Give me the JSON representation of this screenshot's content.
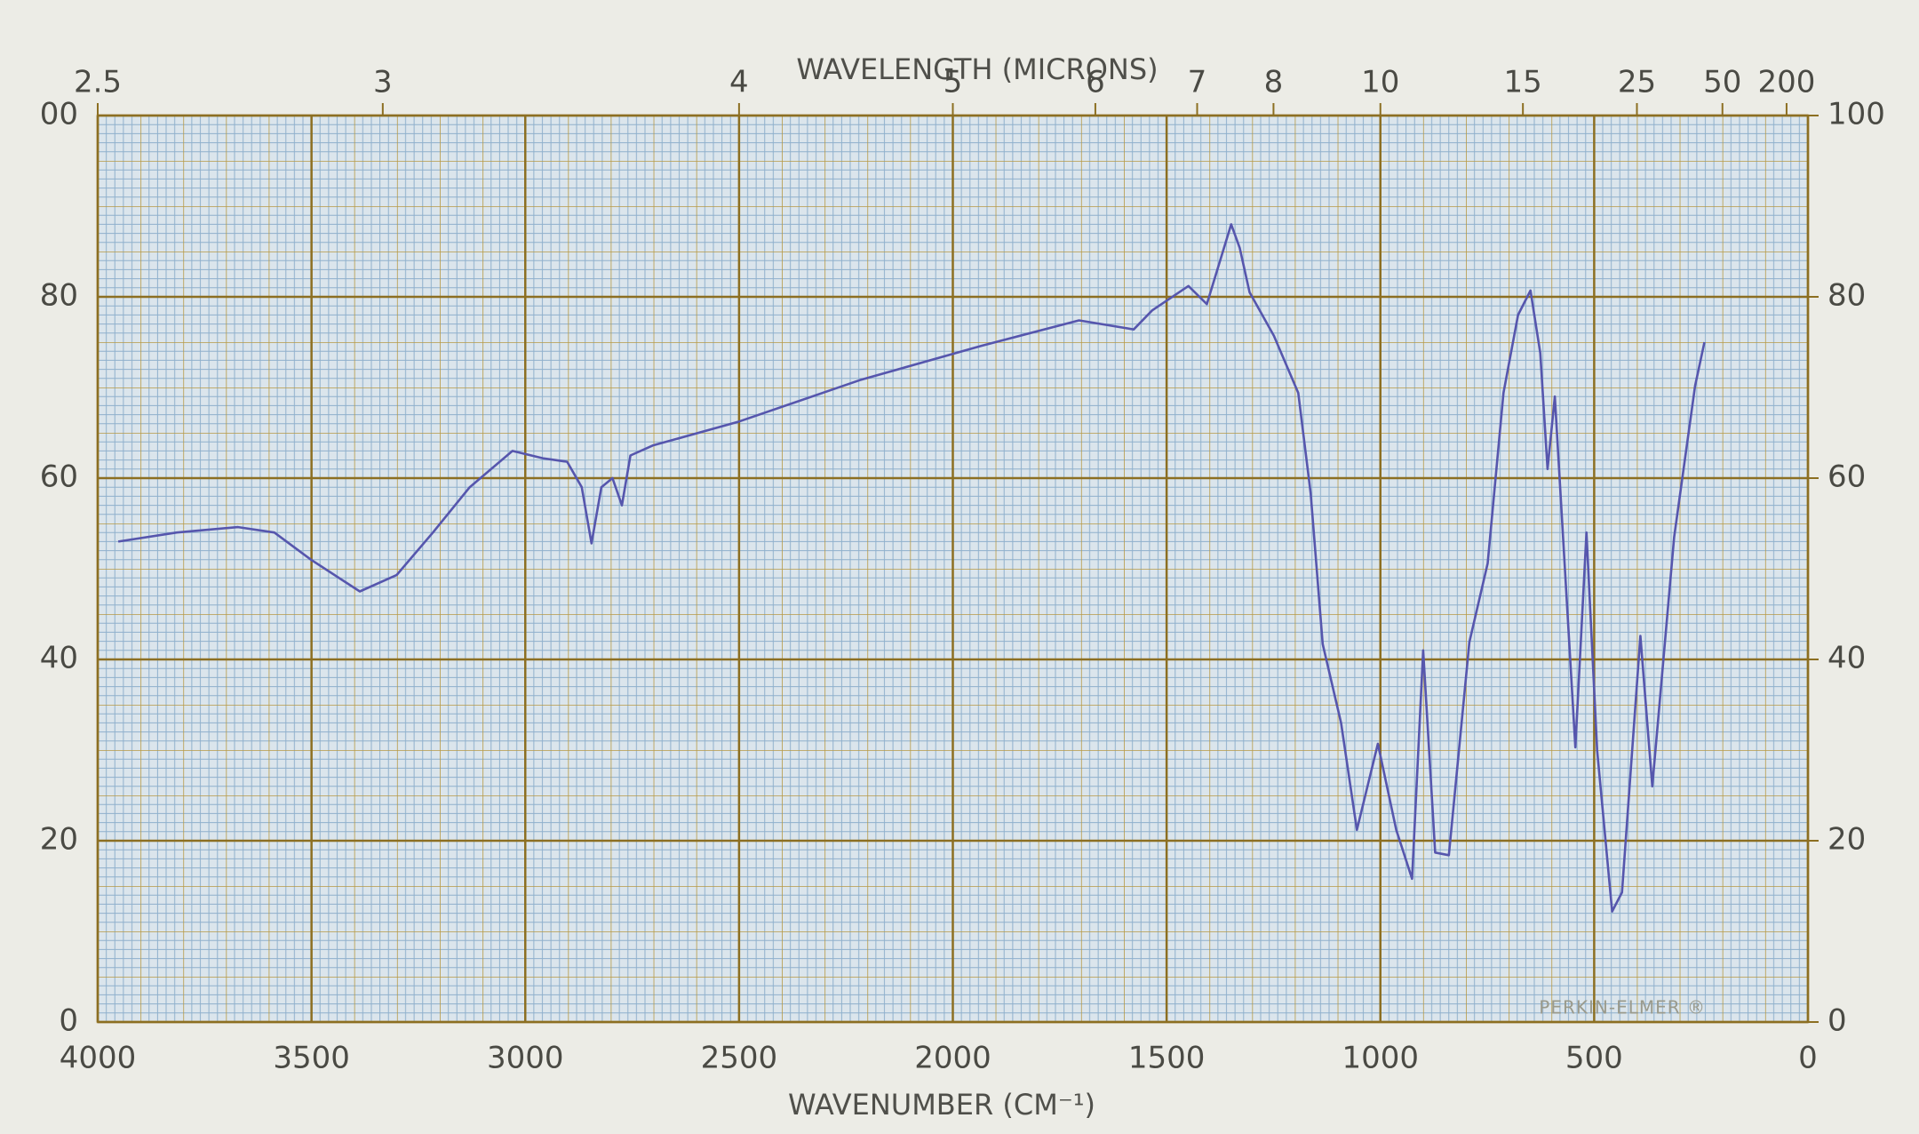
{
  "chart_data": {
    "type": "line",
    "x_label": "WAVENUMBER (CM⁻¹)",
    "x2_label": "WAVELENGTH (MICRONS)",
    "annotation": "PERKIN-ELMER ®",
    "x": [
      3952,
      3815,
      3672,
      3587,
      3501,
      3387,
      3301,
      3216,
      3130,
      3030,
      2959,
      2902,
      2868,
      2845,
      2822,
      2796,
      2774,
      2754,
      2702,
      2503,
      2218,
      1933,
      1705,
      1577,
      1534,
      1449,
      1406,
      1349,
      1329,
      1306,
      1249,
      1192,
      1163,
      1135,
      1092,
      1055,
      1006,
      963,
      926,
      900,
      872,
      840,
      792,
      749,
      712,
      678,
      649,
      626,
      609,
      592,
      544,
      518,
      493,
      458,
      435,
      392,
      364,
      313,
      264,
      242
    ],
    "series": [
      {
        "color": "#5656ad",
        "values": [
          53,
          54,
          54.6,
          54,
          51,
          47.5,
          49.3,
          54,
          59,
          63,
          62.2,
          61.8,
          59,
          52.8,
          59,
          60,
          57,
          62.5,
          63.6,
          66.2,
          70.8,
          74.6,
          77.4,
          76.4,
          78.5,
          81.2,
          79.2,
          88,
          85.4,
          80.5,
          75.7,
          69.4,
          58.3,
          41.7,
          33,
          21.2,
          30.7,
          21.2,
          15.8,
          41,
          18.7,
          18.4,
          41.9,
          50.6,
          69.4,
          78,
          80.7,
          73.8,
          61,
          69,
          30.3,
          54,
          30,
          12.2,
          14.3,
          42.6,
          26,
          53.5,
          70.2,
          75
        ]
      }
    ],
    "xlim": [
      4000,
      0
    ],
    "xticks": [
      4000,
      3500,
      3000,
      2500,
      2000,
      1500,
      1000,
      500,
      0
    ],
    "x2_scale": "reciprocal",
    "x2ticks": [
      2.5,
      3,
      4,
      5,
      6,
      7,
      8,
      10,
      15,
      25,
      50,
      200
    ],
    "ylim": [
      0,
      100
    ],
    "yticks": [
      0,
      20,
      40,
      60,
      80,
      {
        "value": 100,
        "label": "00"
      }
    ],
    "y2lim": [
      0,
      100
    ],
    "y2ticks": [
      0,
      20,
      40,
      60,
      80,
      100
    ],
    "grid": true
  }
}
